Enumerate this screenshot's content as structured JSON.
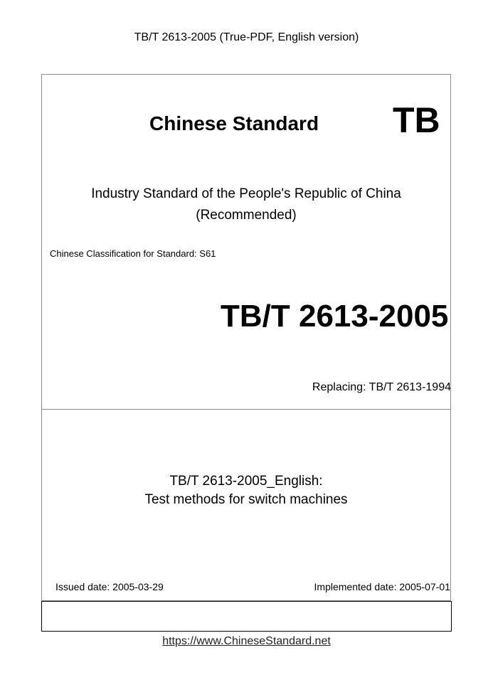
{
  "header": {
    "text": "TB/T 2613-2005 (True-PDF, English version)"
  },
  "cover": {
    "title": "Chinese Standard",
    "logo_letters": "TB",
    "industry_line1": "Industry Standard of the People's Republic of China",
    "industry_line2": "(Recommended)",
    "classification": "Chinese Classification for Standard: S61",
    "standard_code": "TB/T 2613-2005",
    "replacing": "Replacing: TB/T 2613-1994",
    "doc_title_line1": "TB/T 2613-2005_English:",
    "doc_title_line2": "Test methods for switch machines",
    "issued_date": "Issued date: 2005-03-29",
    "implemented_date": "Implemented date: 2005-07-01"
  },
  "footer": {
    "url": "https://www.ChineseStandard.net"
  }
}
